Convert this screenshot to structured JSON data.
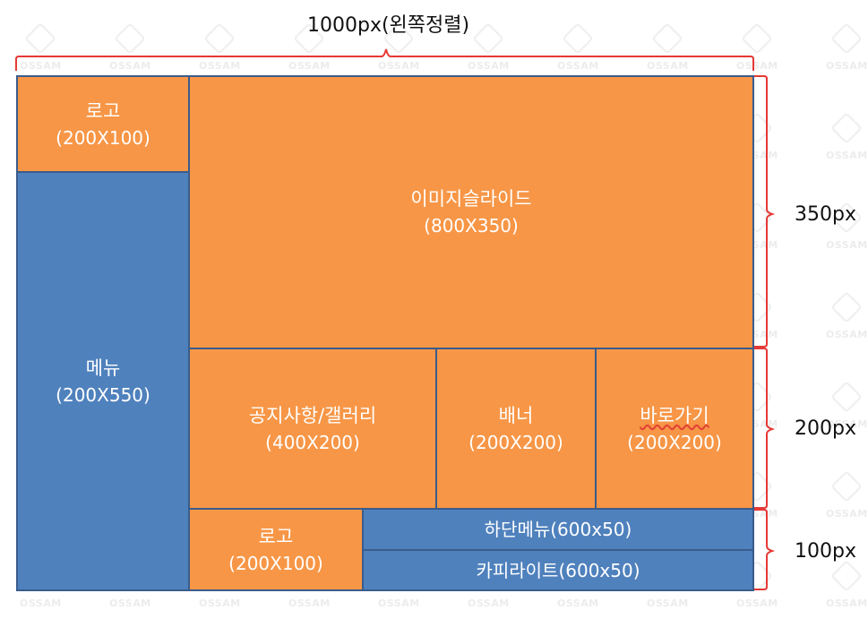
{
  "watermark": "OSSAM",
  "dimensions": {
    "top": "1000px(왼쪽정렬)",
    "right_1": "350px",
    "right_2": "200px",
    "right_3": "100px"
  },
  "blocks": {
    "logo_top": {
      "title": "로고",
      "size": "(200X100)",
      "color": "#f79646"
    },
    "menu": {
      "title": "메뉴",
      "size": "(200X550)",
      "color": "#4f81bd"
    },
    "slider": {
      "title": "이미지슬라이드",
      "size": "(800X350)",
      "color": "#f79646"
    },
    "notice": {
      "title": "공지사항/갤러리",
      "size": "(400X200)",
      "color": "#f79646"
    },
    "banner": {
      "title": "배너",
      "size": "(200X200)",
      "color": "#f79646"
    },
    "shortcut": {
      "title": "바로가기",
      "size": "(200X200)",
      "color": "#f79646"
    },
    "logo_bottom": {
      "title": "로고",
      "size": "(200X100)",
      "color": "#f79646"
    },
    "footer_menu": {
      "label": "하단메뉴(600x50)",
      "color": "#4f81bd"
    },
    "copyright": {
      "label": "카피라이트(600x50)",
      "color": "#4f81bd"
    }
  },
  "brace_color": "#e53935"
}
